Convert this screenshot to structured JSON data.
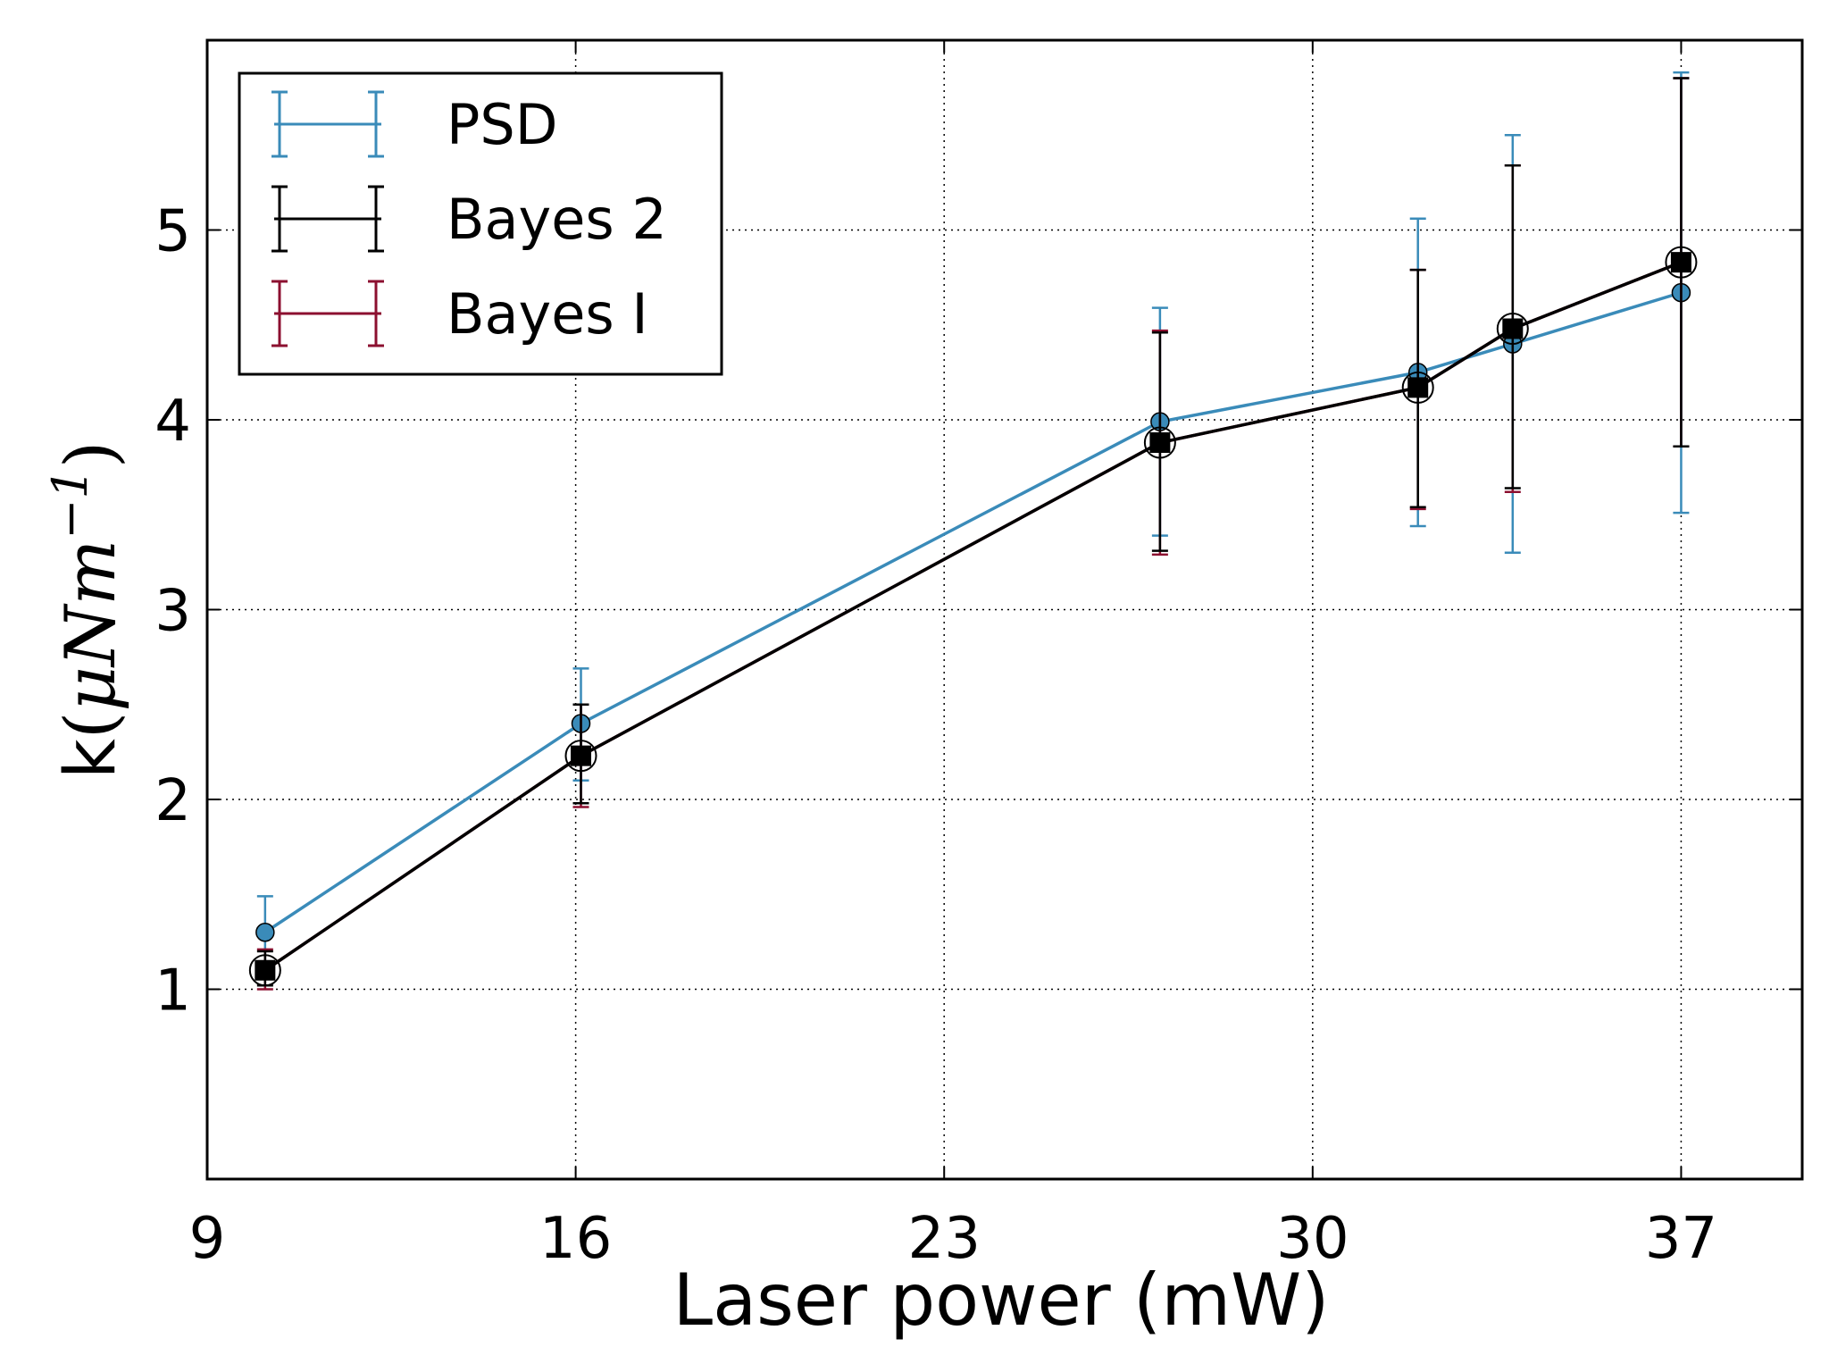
{
  "chart_data": {
    "type": "line",
    "xlabel": "Laser power (mW)",
    "ylabel": {
      "main": "k",
      "open": "(",
      "math": "μNm",
      "superscript": "−1",
      "close": ")"
    },
    "xlim": [
      9,
      39.3
    ],
    "ylim": [
      0,
      6
    ],
    "x_ticks": [
      9,
      16,
      23,
      30,
      37
    ],
    "y_ticks": [
      1,
      2,
      3,
      4,
      5
    ],
    "grid": true,
    "legend_position": "top-left",
    "series": [
      {
        "name": "PSD",
        "color": "#3a8bb9",
        "marker": "circle",
        "x": [
          10.1,
          16.1,
          27.1,
          32.0,
          33.8,
          37.0
        ],
        "y": [
          1.3,
          2.4,
          3.99,
          4.25,
          4.4,
          4.67
        ],
        "err_low": [
          1.08,
          2.1,
          3.39,
          3.44,
          3.3,
          3.51
        ],
        "err_high": [
          1.49,
          2.69,
          4.59,
          5.06,
          5.5,
          5.83
        ]
      },
      {
        "name": "Bayes 2",
        "color": "#000000",
        "marker": "square",
        "x": [
          10.1,
          16.1,
          27.1,
          32.0,
          33.8,
          37.0
        ],
        "y": [
          1.1,
          2.23,
          3.88,
          4.17,
          4.48,
          4.83
        ],
        "err_low": [
          1.02,
          1.98,
          3.31,
          3.54,
          3.64,
          3.86
        ],
        "err_high": [
          1.2,
          2.5,
          4.46,
          4.79,
          5.34,
          5.8
        ]
      },
      {
        "name": "Bayes I",
        "color": "#8c1030",
        "marker": "circle-open",
        "x": [
          10.1,
          16.1,
          27.1,
          32.0,
          33.8,
          37.0
        ],
        "y": [
          1.1,
          2.23,
          3.88,
          4.17,
          4.48,
          4.83
        ],
        "err_low": [
          1.0,
          1.96,
          3.29,
          3.53,
          3.62,
          3.86
        ],
        "err_high": [
          1.21,
          2.5,
          4.47,
          4.79,
          5.34,
          5.8
        ]
      }
    ]
  }
}
